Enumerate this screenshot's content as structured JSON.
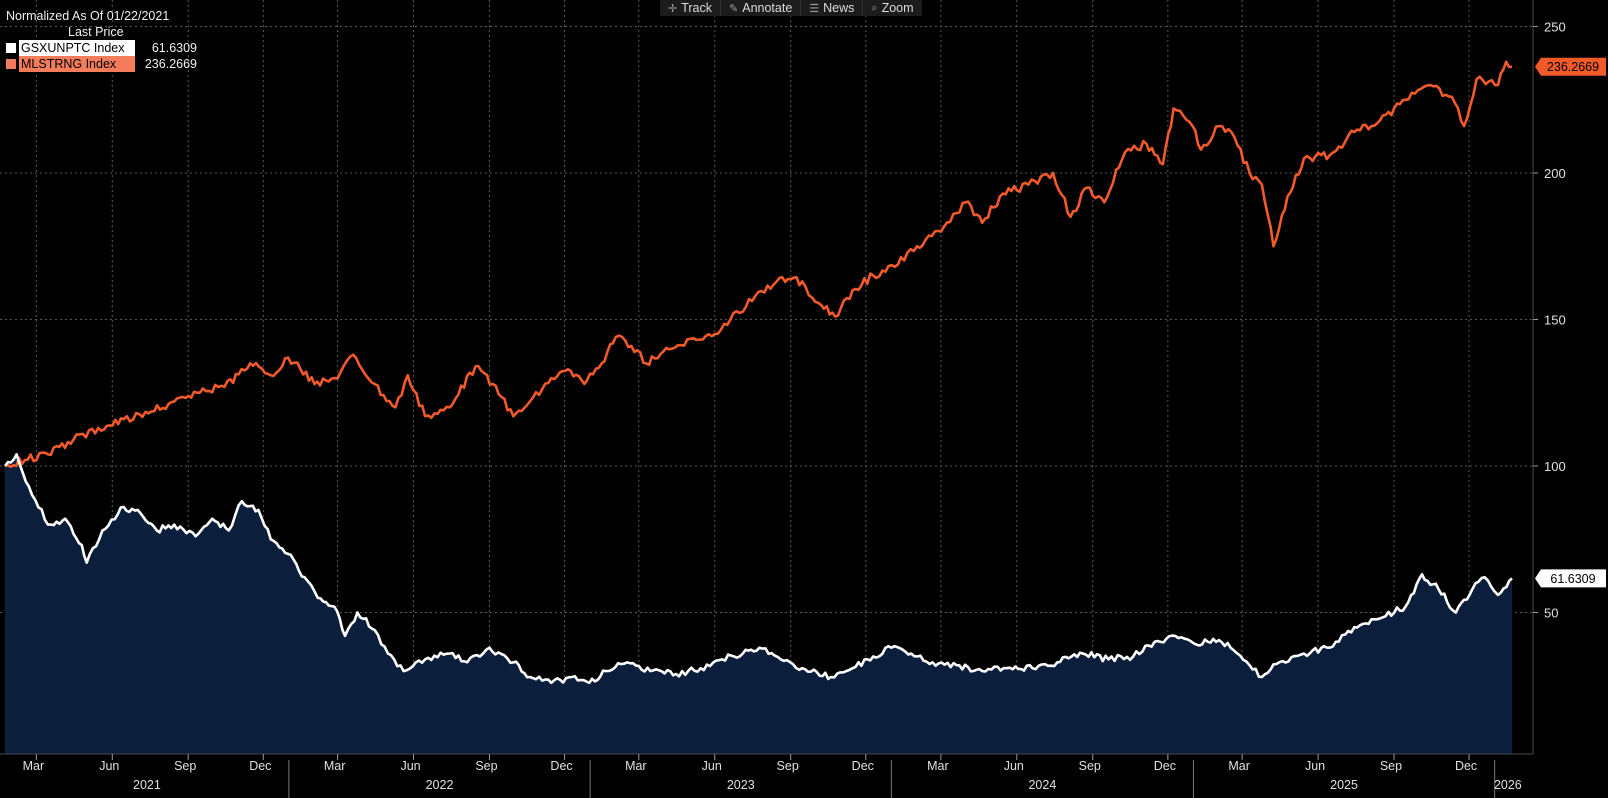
{
  "legend": {
    "header": "Normalized As Of 01/22/2021",
    "subheader": "Last Price",
    "items": [
      {
        "name": "GSXUNPTC Index",
        "value": "61.6309",
        "color": "#ffffff"
      },
      {
        "name": "MLSTRNG Index",
        "value": "236.2669",
        "color": "#f47c5a"
      }
    ]
  },
  "toolbar": {
    "items": [
      {
        "label": "Track",
        "icon": "crosshair-icon"
      },
      {
        "label": "Annotate",
        "icon": "pencil-icon"
      },
      {
        "label": "News",
        "icon": "news-icon"
      },
      {
        "label": "Zoom",
        "icon": "magnifier-icon"
      }
    ]
  },
  "chart_data": {
    "type": "line",
    "normalized_as_of": "01/22/2021",
    "y_ticks": [
      50,
      100,
      150,
      200,
      250
    ],
    "ylim": [
      0,
      255
    ],
    "x_month_labels": [
      "Mar",
      "Jun",
      "Sep",
      "Dec",
      "Mar",
      "Jun",
      "Sep",
      "Dec",
      "Mar",
      "Jun",
      "Sep",
      "Dec",
      "Mar",
      "Jun",
      "Sep",
      "Dec",
      "Mar",
      "Jun",
      "Sep",
      "Dec"
    ],
    "x_year_labels": [
      "2021",
      "2022",
      "2023",
      "2024",
      "2025",
      "2026"
    ],
    "grid": true,
    "legend_position": "top-left",
    "series": [
      {
        "name": "MLSTRNG Index",
        "color": "#f25a2a",
        "last_value": "236.2669",
        "area": false,
        "points": [
          [
            "2021-01-22",
            100
          ],
          [
            "2021-02-15",
            102
          ],
          [
            "2021-03-15",
            104
          ],
          [
            "2021-04-15",
            109
          ],
          [
            "2021-05-15",
            113
          ],
          [
            "2021-06-15",
            116
          ],
          [
            "2021-07-15",
            118
          ],
          [
            "2021-08-15",
            122
          ],
          [
            "2021-09-15",
            125
          ],
          [
            "2021-10-15",
            127
          ],
          [
            "2021-11-15",
            135
          ],
          [
            "2021-12-10",
            131
          ],
          [
            "2021-12-31",
            137
          ],
          [
            "2022-01-15",
            133
          ],
          [
            "2022-02-01",
            128
          ],
          [
            "2022-02-25",
            130
          ],
          [
            "2022-03-20",
            138
          ],
          [
            "2022-04-15",
            128
          ],
          [
            "2022-05-10",
            120
          ],
          [
            "2022-05-25",
            131
          ],
          [
            "2022-06-15",
            117
          ],
          [
            "2022-07-15",
            120
          ],
          [
            "2022-08-15",
            134
          ],
          [
            "2022-09-05",
            128
          ],
          [
            "2022-09-30",
            117
          ],
          [
            "2022-10-20",
            122
          ],
          [
            "2022-11-15",
            130
          ],
          [
            "2022-12-05",
            133
          ],
          [
            "2022-12-25",
            128
          ],
          [
            "2023-01-15",
            135
          ],
          [
            "2023-02-01",
            144
          ],
          [
            "2023-02-20",
            141
          ],
          [
            "2023-03-10",
            135
          ],
          [
            "2023-04-10",
            140
          ],
          [
            "2023-05-10",
            143
          ],
          [
            "2023-06-01",
            145
          ],
          [
            "2023-06-20",
            150
          ],
          [
            "2023-07-20",
            158
          ],
          [
            "2023-08-15",
            163
          ],
          [
            "2023-09-15",
            163
          ],
          [
            "2023-10-01",
            156
          ],
          [
            "2023-10-25",
            151
          ],
          [
            "2023-11-15",
            160
          ],
          [
            "2023-12-10",
            165
          ],
          [
            "2024-01-05",
            168
          ],
          [
            "2024-02-01",
            175
          ],
          [
            "2024-03-01",
            180
          ],
          [
            "2024-03-31",
            190
          ],
          [
            "2024-04-20",
            183
          ],
          [
            "2024-05-15",
            193
          ],
          [
            "2024-06-15",
            196
          ],
          [
            "2024-07-15",
            200
          ],
          [
            "2024-08-05",
            185
          ],
          [
            "2024-08-25",
            195
          ],
          [
            "2024-09-15",
            190
          ],
          [
            "2024-10-10",
            207
          ],
          [
            "2024-11-05",
            210
          ],
          [
            "2024-11-25",
            203
          ],
          [
            "2024-12-08",
            222
          ],
          [
            "2024-12-31",
            216
          ],
          [
            "2025-01-10",
            208
          ],
          [
            "2025-02-01",
            216
          ],
          [
            "2025-02-20",
            212
          ],
          [
            "2025-03-10",
            200
          ],
          [
            "2025-03-25",
            196
          ],
          [
            "2025-04-08",
            175
          ],
          [
            "2025-04-25",
            192
          ],
          [
            "2025-05-15",
            205
          ],
          [
            "2025-06-15",
            206
          ],
          [
            "2025-07-15",
            214
          ],
          [
            "2025-08-15",
            218
          ],
          [
            "2025-09-15",
            225
          ],
          [
            "2025-10-15",
            230
          ],
          [
            "2025-11-10",
            226
          ],
          [
            "2025-11-25",
            216
          ],
          [
            "2025-12-10",
            232
          ],
          [
            "2026-01-05",
            230
          ],
          [
            "2026-01-15",
            238
          ],
          [
            "2026-01-22",
            236.2669
          ]
        ]
      },
      {
        "name": "GSXUNPTC Index",
        "color": "#ffffff",
        "last_value": "61.6309",
        "area": true,
        "area_color": "#0b1f3d",
        "points": [
          [
            "2021-01-22",
            100
          ],
          [
            "2021-02-05",
            104
          ],
          [
            "2021-02-20",
            93
          ],
          [
            "2021-03-15",
            80
          ],
          [
            "2021-04-05",
            82
          ],
          [
            "2021-04-25",
            73
          ],
          [
            "2021-05-01",
            67
          ],
          [
            "2021-05-20",
            78
          ],
          [
            "2021-06-15",
            86
          ],
          [
            "2021-07-05",
            84
          ],
          [
            "2021-07-25",
            78
          ],
          [
            "2021-08-15",
            80
          ],
          [
            "2021-09-10",
            76
          ],
          [
            "2021-09-30",
            82
          ],
          [
            "2021-10-20",
            78
          ],
          [
            "2021-11-05",
            88
          ],
          [
            "2021-11-25",
            85
          ],
          [
            "2021-12-10",
            75
          ],
          [
            "2021-12-31",
            70
          ],
          [
            "2022-01-20",
            62
          ],
          [
            "2022-02-05",
            55
          ],
          [
            "2022-02-25",
            52
          ],
          [
            "2022-03-10",
            42
          ],
          [
            "2022-03-25",
            50
          ],
          [
            "2022-04-15",
            44
          ],
          [
            "2022-05-01",
            36
          ],
          [
            "2022-05-20",
            30
          ],
          [
            "2022-06-15",
            34
          ],
          [
            "2022-07-15",
            36
          ],
          [
            "2022-08-05",
            33
          ],
          [
            "2022-09-01",
            38
          ],
          [
            "2022-09-30",
            33
          ],
          [
            "2022-10-20",
            28
          ],
          [
            "2022-11-15",
            26
          ],
          [
            "2022-12-10",
            28
          ],
          [
            "2022-12-31",
            26
          ],
          [
            "2023-01-20",
            30
          ],
          [
            "2023-02-15",
            33
          ],
          [
            "2023-03-15",
            30
          ],
          [
            "2023-04-15",
            29
          ],
          [
            "2023-05-15",
            31
          ],
          [
            "2023-06-10",
            34
          ],
          [
            "2023-07-05",
            36
          ],
          [
            "2023-07-25",
            38
          ],
          [
            "2023-08-20",
            34
          ],
          [
            "2023-09-15",
            31
          ],
          [
            "2023-10-20",
            28
          ],
          [
            "2023-11-15",
            31
          ],
          [
            "2023-12-10",
            35
          ],
          [
            "2024-01-01",
            38
          ],
          [
            "2024-01-25",
            36
          ],
          [
            "2024-02-20",
            33
          ],
          [
            "2024-03-20",
            32
          ],
          [
            "2024-04-20",
            30
          ],
          [
            "2024-05-20",
            31
          ],
          [
            "2024-06-20",
            31
          ],
          [
            "2024-07-20",
            33
          ],
          [
            "2024-08-20",
            36
          ],
          [
            "2024-09-20",
            34
          ],
          [
            "2024-10-20",
            35
          ],
          [
            "2024-11-15",
            40
          ],
          [
            "2024-12-10",
            42
          ],
          [
            "2025-01-05",
            39
          ],
          [
            "2025-01-25",
            41
          ],
          [
            "2025-02-15",
            38
          ],
          [
            "2025-03-10",
            32
          ],
          [
            "2025-03-25",
            28
          ],
          [
            "2025-04-15",
            33
          ],
          [
            "2025-05-15",
            36
          ],
          [
            "2025-06-15",
            38
          ],
          [
            "2025-07-15",
            45
          ],
          [
            "2025-08-15",
            48
          ],
          [
            "2025-09-15",
            52
          ],
          [
            "2025-10-05",
            63
          ],
          [
            "2025-10-25",
            58
          ],
          [
            "2025-11-15",
            50
          ],
          [
            "2025-12-05",
            58
          ],
          [
            "2025-12-20",
            62
          ],
          [
            "2026-01-05",
            56
          ],
          [
            "2026-01-22",
            61.6309
          ]
        ]
      }
    ]
  }
}
